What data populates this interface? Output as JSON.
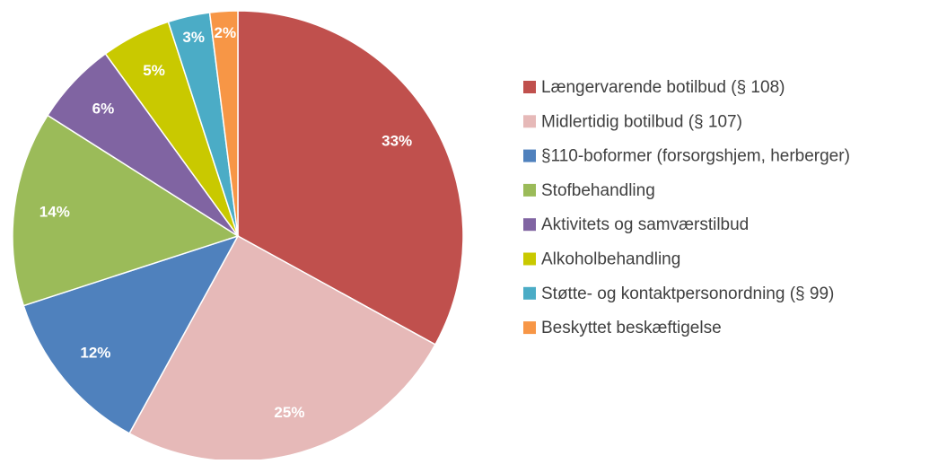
{
  "chart_data": {
    "type": "pie",
    "categories": [
      "Længervarende botilbud (§ 108)",
      "Midlertidig botilbud (§ 107)",
      "§110-boformer (forsorgshjem, herberger)",
      "Stofbehandling",
      "Aktivitets og samværstilbud",
      "Alkoholbehandling",
      "Støtte- og kontaktpersonordning (§ 99)",
      "Beskyttet beskæftigelse"
    ],
    "values": [
      33,
      25,
      12,
      14,
      6,
      5,
      3,
      2
    ],
    "value_labels": [
      "33%",
      "25%",
      "12%",
      "14%",
      "6%",
      "5%",
      "3%",
      "2%"
    ],
    "colors": [
      "#c0504d",
      "#e6b9b8",
      "#4f81bd",
      "#9bbb59",
      "#8064a2",
      "#c9c900",
      "#4bacc6",
      "#f79646"
    ],
    "legend": "right"
  }
}
